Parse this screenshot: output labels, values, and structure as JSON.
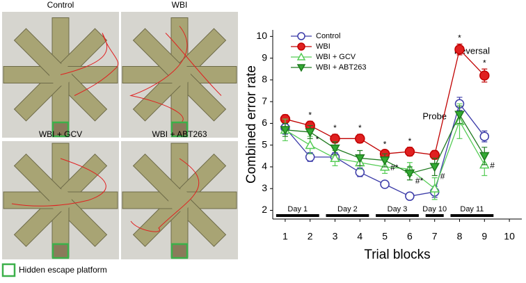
{
  "panels": [
    {
      "title": "Control"
    },
    {
      "title": "WBI"
    },
    {
      "title": "WBI + GCV"
    },
    {
      "title": "WBI + ABT263"
    }
  ],
  "platform_legend": "Hidden escape platform",
  "chart_data": {
    "type": "line",
    "x_label": "Trial blocks",
    "y_label": "Combined error rate",
    "x": [
      1,
      2,
      3,
      4,
      5,
      6,
      7,
      8,
      9
    ],
    "xlim": [
      0.5,
      10.5
    ],
    "xticks": [
      1,
      2,
      3,
      4,
      5,
      6,
      7,
      8,
      9,
      10
    ],
    "ylim": [
      1.6,
      10.3
    ],
    "yticks": [
      2,
      3,
      4,
      5,
      6,
      7,
      8,
      9,
      10
    ],
    "legend": "top-left",
    "series": [
      {
        "name": "Control",
        "color": "#3a3aa8",
        "fill": "#ffffff",
        "marker": "circle",
        "values": [
          5.8,
          4.45,
          4.45,
          3.75,
          3.2,
          2.65,
          2.85,
          6.9,
          5.4
        ],
        "errors": [
          0.3,
          0.2,
          0.2,
          0.2,
          0.15,
          0.1,
          0.25,
          0.3,
          0.25
        ]
      },
      {
        "name": "WBI",
        "color": "#c00000",
        "fill": "#e02020",
        "marker": "circle",
        "values": [
          6.2,
          5.9,
          5.3,
          5.3,
          4.6,
          4.7,
          4.55,
          9.4,
          8.2
        ],
        "errors": [
          0.2,
          0.2,
          0.2,
          0.2,
          0.15,
          0.2,
          0.2,
          0.25,
          0.3
        ],
        "sig_labels": [
          null,
          "*",
          "*",
          "*",
          "*",
          "*",
          null,
          "*",
          "*"
        ]
      },
      {
        "name": "WBI + GCV",
        "color": "#55cc55",
        "fill": "#ffffff",
        "marker": "triangle-up",
        "values": [
          5.7,
          5.0,
          4.4,
          4.2,
          4.0,
          3.9,
          3.0,
          6.1,
          4.1
        ],
        "errors": [
          0.5,
          0.4,
          0.35,
          0.3,
          0.3,
          0.3,
          0.5,
          0.8,
          0.5
        ]
      },
      {
        "name": "WBI + ABT263",
        "color": "#1e7a1e",
        "fill": "#33aa33",
        "marker": "triangle-down",
        "values": [
          5.7,
          5.6,
          4.85,
          4.4,
          4.3,
          3.7,
          4.0,
          6.4,
          4.5
        ],
        "errors": [
          0.3,
          0.3,
          0.3,
          0.35,
          0.3,
          0.3,
          0.4,
          0.4,
          0.4
        ],
        "sig_labels": [
          null,
          "*",
          null,
          null,
          "#*",
          "#*",
          "#",
          null,
          "#"
        ]
      }
    ],
    "days": [
      {
        "label": "Day 1",
        "trials": [
          1,
          2
        ]
      },
      {
        "label": "Day 2",
        "trials": [
          3,
          4
        ]
      },
      {
        "label": "Day 3",
        "trials": [
          5,
          6
        ]
      },
      {
        "label": "Day 10",
        "trials": [
          7,
          7
        ]
      },
      {
        "label": "Day 11",
        "trials": [
          8,
          9
        ]
      }
    ],
    "annotations": [
      {
        "text": "Probe",
        "x": 7
      },
      {
        "text": "Reversal",
        "x": 8.5
      }
    ]
  }
}
